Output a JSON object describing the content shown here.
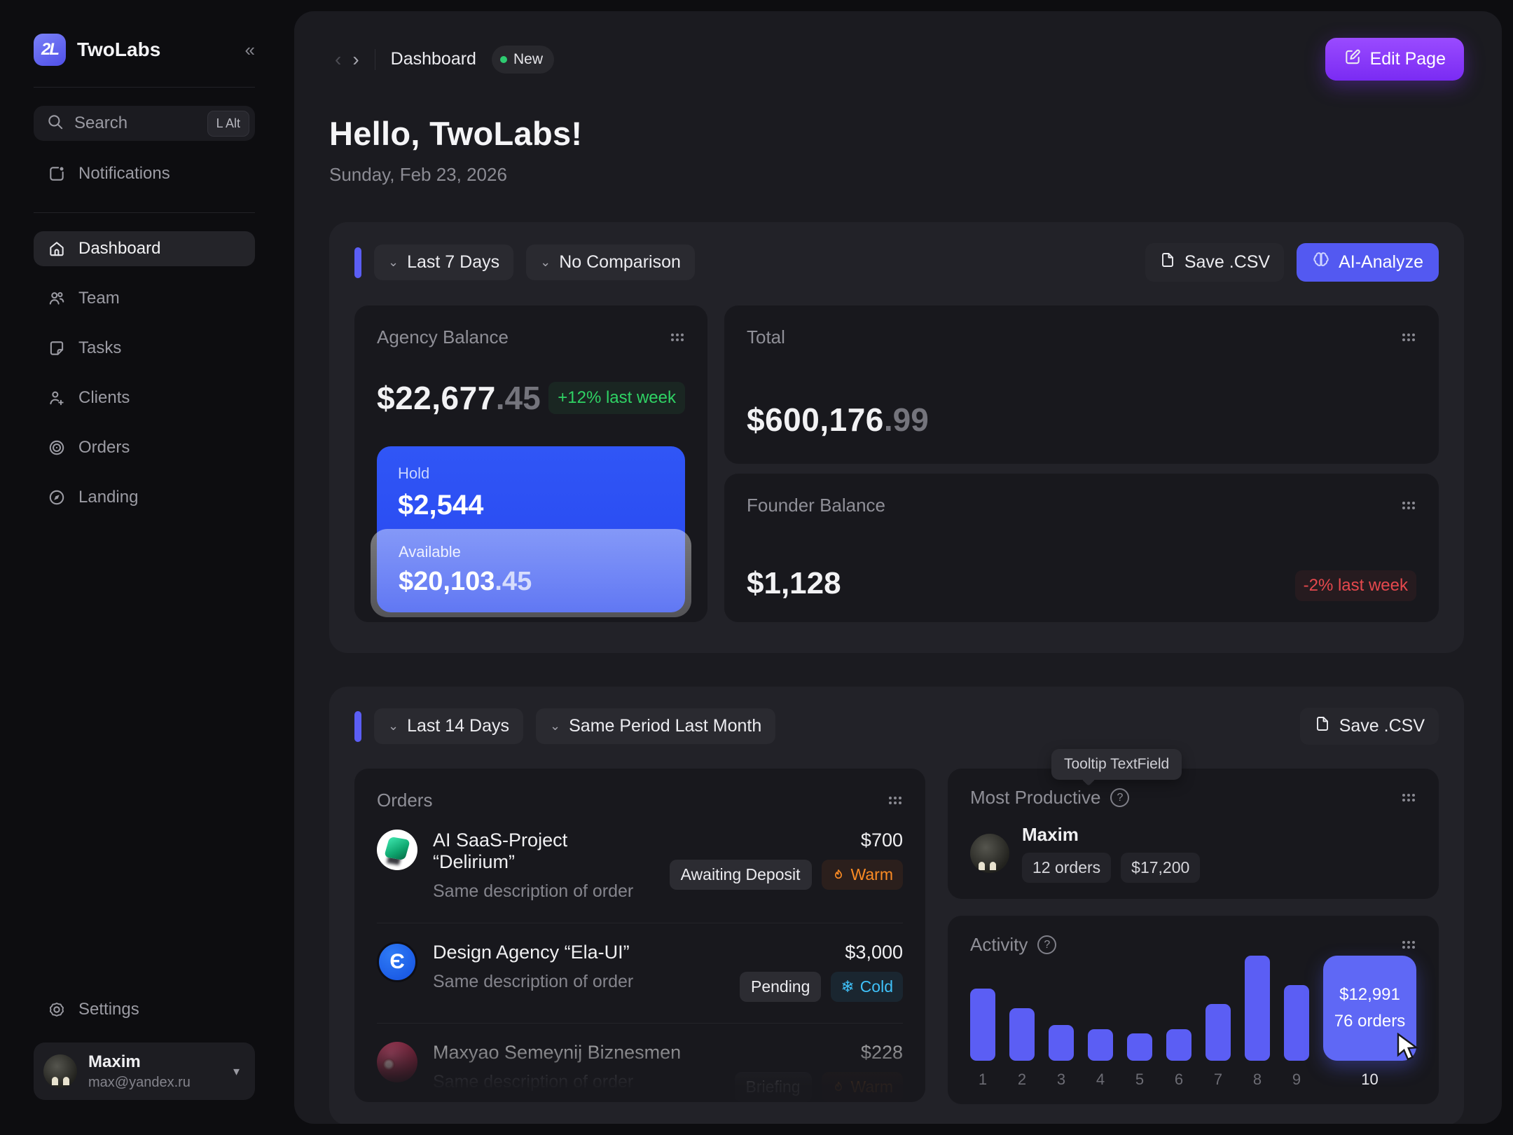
{
  "brand": {
    "name": "TwoLabs",
    "logo_text": "2L"
  },
  "sidebar": {
    "search": {
      "placeholder": "Search",
      "shortcut": "L Alt"
    },
    "notifications": {
      "label": "Notifications"
    },
    "nav": [
      {
        "label": "Dashboard",
        "active": true
      },
      {
        "label": "Team",
        "active": false
      },
      {
        "label": "Tasks",
        "active": false
      },
      {
        "label": "Clients",
        "active": false
      },
      {
        "label": "Orders",
        "active": false
      },
      {
        "label": "Landing",
        "active": false
      }
    ],
    "settings": {
      "label": "Settings"
    },
    "user": {
      "name": "Maxim",
      "email": "max@yandex.ru"
    }
  },
  "topbar": {
    "breadcrumb": "Dashboard",
    "new_badge": "New",
    "edit_button": "Edit Page"
  },
  "hero": {
    "greeting": "Hello, TwoLabs!",
    "date": "Sunday, Feb 23, 2026"
  },
  "finance_panel": {
    "range": "Last 7 Days",
    "comparison": "No Comparison",
    "save_csv": "Save .CSV",
    "ai_analyze": "AI-Analyze",
    "agency_balance": {
      "title": "Agency Balance",
      "amount": "$22,677",
      "cents": ".45",
      "delta": "+12% last week",
      "hold": {
        "label": "Hold",
        "amount": "$2,544"
      },
      "available": {
        "label": "Available",
        "amount": "$20,103",
        "cents": ".45"
      }
    },
    "total": {
      "title": "Total",
      "amount": "$600,176",
      "cents": ".99"
    },
    "founder": {
      "title": "Founder Balance",
      "amount": "$1,128",
      "delta": "-2% last week"
    }
  },
  "orders_panel": {
    "range": "Last 14 Days",
    "comparison": "Same Period Last Month",
    "save_csv": "Save .CSV",
    "orders": {
      "title": "Orders",
      "rows": [
        {
          "name": "AI SaaS-Project “Delirium”",
          "description": "Same description of order",
          "amount": "$700",
          "status": "Awaiting Deposit",
          "temperature": "Warm"
        },
        {
          "name": "Design Agency “Ela-UI”",
          "description": "Same description of order",
          "amount": "$3,000",
          "status": "Pending",
          "temperature": "Cold",
          "avatar_glyph": "Є"
        },
        {
          "name": "Maxyao Semeynij Biznesmen",
          "description": "Same description of order",
          "amount": "$228",
          "status": "Briefing",
          "temperature": "Warm"
        }
      ]
    },
    "most_productive": {
      "title": "Most Productive",
      "tooltip": "Tooltip TextField",
      "name": "Maxim",
      "orders_badge": "12 orders",
      "amount_badge": "$17,200"
    },
    "activity": {
      "title": "Activity"
    }
  },
  "chart_data": {
    "type": "bar",
    "title": "Activity",
    "categories": [
      "1",
      "2",
      "3",
      "4",
      "5",
      "6",
      "7",
      "8",
      "9",
      "10"
    ],
    "values": [
      69,
      50,
      34,
      30,
      26,
      30,
      54,
      100,
      72,
      100
    ],
    "value_scale": "percent of tallest bar (absolute values unlabeled except highlighted bar)",
    "highlight": {
      "category": "10",
      "amount": "$12,991",
      "orders": "76 orders"
    },
    "bar_color": "#5b5ef4",
    "highlight_color": "#5f68f5",
    "xlabel": "",
    "ylabel": "",
    "grid": false,
    "legend": false
  },
  "colors": {
    "accent_blue": "#5b5ef4",
    "hold_blue": "#2d52f5",
    "edit_purple": "#8b3cfa",
    "positive_green": "#2fd264",
    "negative_red": "#e5484d",
    "warm_orange": "#fb8b24",
    "cold_cyan": "#3fc1f9"
  }
}
